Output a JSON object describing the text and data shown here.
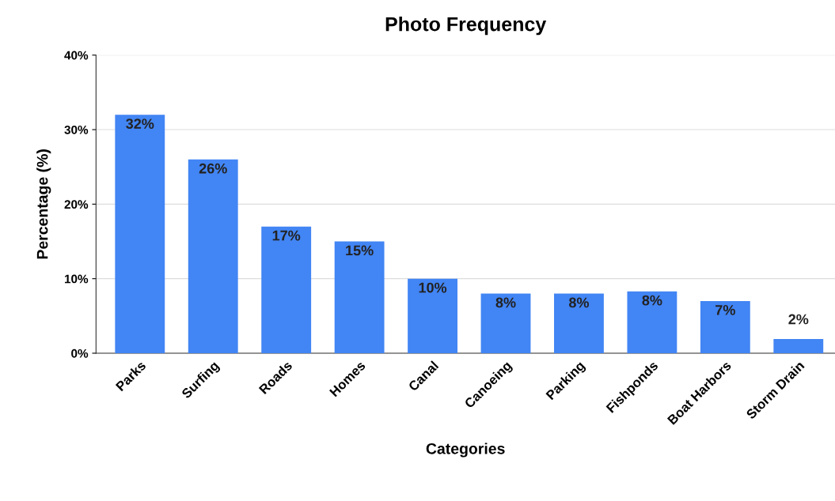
{
  "chart_data": {
    "type": "bar",
    "title": "Photo Frequency",
    "xlabel": "Categories",
    "ylabel": "Percentage (%)",
    "categories": [
      "Parks",
      "Surfing",
      "Roads",
      "Homes",
      "Canal",
      "Canoeing",
      "Parking",
      "Fishponds",
      "Boat Harbors",
      "Storm Drain"
    ],
    "values": [
      32,
      26,
      17,
      15,
      10,
      8,
      8,
      8.3,
      7,
      1.9
    ],
    "value_labels": [
      "32%",
      "26%",
      "17%",
      "15%",
      "10%",
      "8%",
      "8%",
      "8%",
      "7%",
      "2%"
    ],
    "color": "#4285f4",
    "ylim": [
      0,
      40
    ],
    "yticks": [
      {
        "value": 0,
        "label": "0%"
      },
      {
        "value": 10,
        "label": "10%"
      },
      {
        "value": 20,
        "label": "20%"
      },
      {
        "value": 30,
        "label": "30%"
      },
      {
        "value": 40,
        "label": "40%"
      }
    ],
    "grid": "y"
  }
}
